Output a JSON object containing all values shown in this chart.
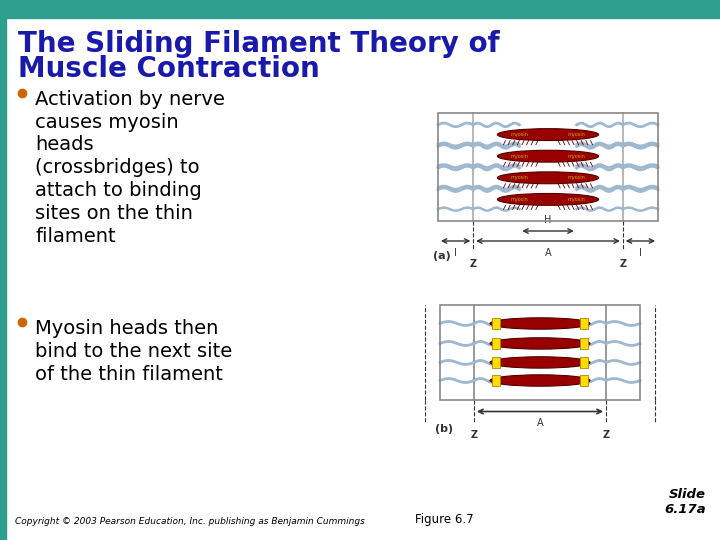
{
  "bg_color": "#ffffff",
  "header_bar_color": "#2e9e8e",
  "left_bar_color": "#2e9e8e",
  "title_text_line1": "The Sliding Filament Theory of",
  "title_text_line2": "Muscle Contraction",
  "title_color": "#1a1aaa",
  "title_fontsize": 20,
  "bullet_color": "#cc6600",
  "bullet1": "Activation by nerve\ncauses myosin\nheads\n(crossbridges) to\nattach to binding\nsites on the thin\nfilament",
  "bullet2": "Myosin heads then\nbind to the next site\nof the thin filament",
  "bullet_fontsize": 14,
  "copyright_text": "Copyright © 2003 Pearson Education, Inc. publishing as Benjamin Cummings",
  "copyright_fontsize": 6.5,
  "figure_label": "Figure 6.7",
  "slide_label": "Slide\n6.17a",
  "footer_fontsize": 8.5,
  "dark_red": "#990000",
  "blue_gray": "#9eb8d0",
  "yellow": "#ffdd00",
  "line_color": "#333333",
  "label_yellow": "#ccaa00",
  "diag_bg": "#ffffff",
  "diag_outline": "#888888"
}
